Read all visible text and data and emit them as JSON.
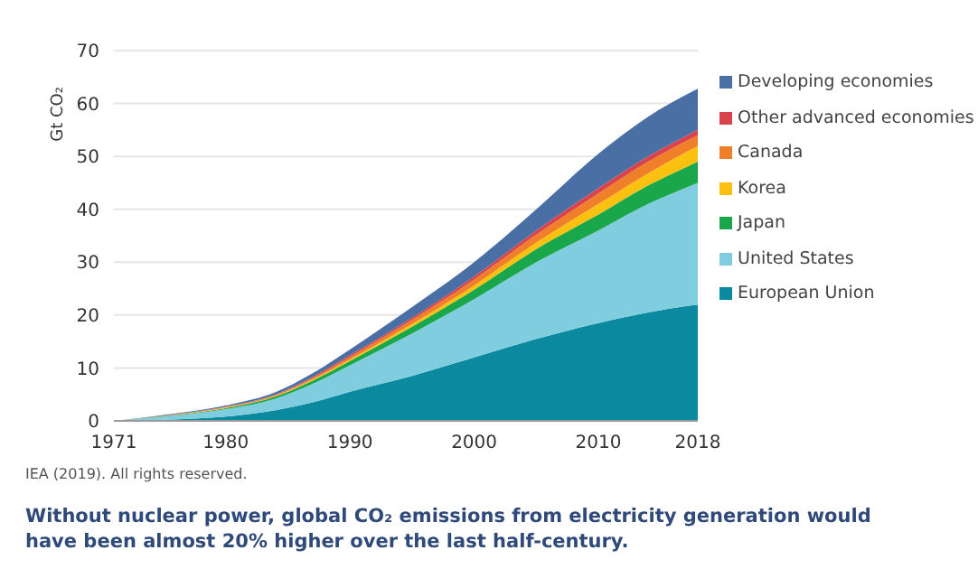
{
  "chart_data": {
    "type": "area",
    "stacked": true,
    "ylabel": "Gt CO₂",
    "x": [
      1971,
      1975,
      1980,
      1984,
      1987,
      1990,
      1995,
      2000,
      2005,
      2010,
      2014,
      2018
    ],
    "xlim": [
      1971,
      2018
    ],
    "xticks": [
      1971,
      1980,
      1990,
      2000,
      2010,
      2018
    ],
    "ylim": [
      0,
      70
    ],
    "yticks": [
      0,
      10,
      20,
      30,
      40,
      50,
      60,
      70
    ],
    "grid": "y",
    "legend": "top right",
    "series": [
      {
        "name": "European Union",
        "color": "#0a899f",
        "values": [
          0,
          0.2,
          0.8,
          2,
          3.5,
          5.5,
          8.5,
          12,
          15.5,
          18.5,
          20.5,
          22
        ]
      },
      {
        "name": "United States",
        "color": "#80cde0",
        "values": [
          0,
          0.6,
          1.4,
          2.2,
          3.5,
          5,
          8,
          11,
          14.5,
          17.5,
          20.5,
          23
        ]
      },
      {
        "name": "Japan",
        "color": "#1aa64a",
        "values": [
          0,
          0.1,
          0.2,
          0.4,
          0.6,
          0.8,
          1.3,
          1.8,
          2.5,
          3,
          3.5,
          4
        ]
      },
      {
        "name": "Korea",
        "color": "#fcc010",
        "values": [
          0,
          0,
          0.1,
          0.1,
          0.2,
          0.3,
          0.5,
          0.8,
          1.2,
          2,
          2.3,
          3
        ]
      },
      {
        "name": "Canada",
        "color": "#f07f2a",
        "values": [
          0,
          0.1,
          0.1,
          0.2,
          0.3,
          0.5,
          0.8,
          1.1,
          1.5,
          2,
          2.2,
          2
        ]
      },
      {
        "name": "Other advanced economies",
        "color": "#d9434b",
        "values": [
          0,
          0,
          0.1,
          0.1,
          0.2,
          0.3,
          0.4,
          0.6,
          0.8,
          1,
          1,
          1
        ]
      },
      {
        "name": "Developing economies",
        "color": "#4a6fa5",
        "values": [
          0,
          0.1,
          0.2,
          0.4,
          0.7,
          1.1,
          2,
          2.7,
          4,
          6.5,
          7.5,
          7.8
        ]
      }
    ],
    "annotations": [
      "IEA (2019). All rights reserved.",
      "Without nuclear power, global CO₂ emissions from electricity generation would have been almost 20% higher over the last half-century."
    ]
  }
}
